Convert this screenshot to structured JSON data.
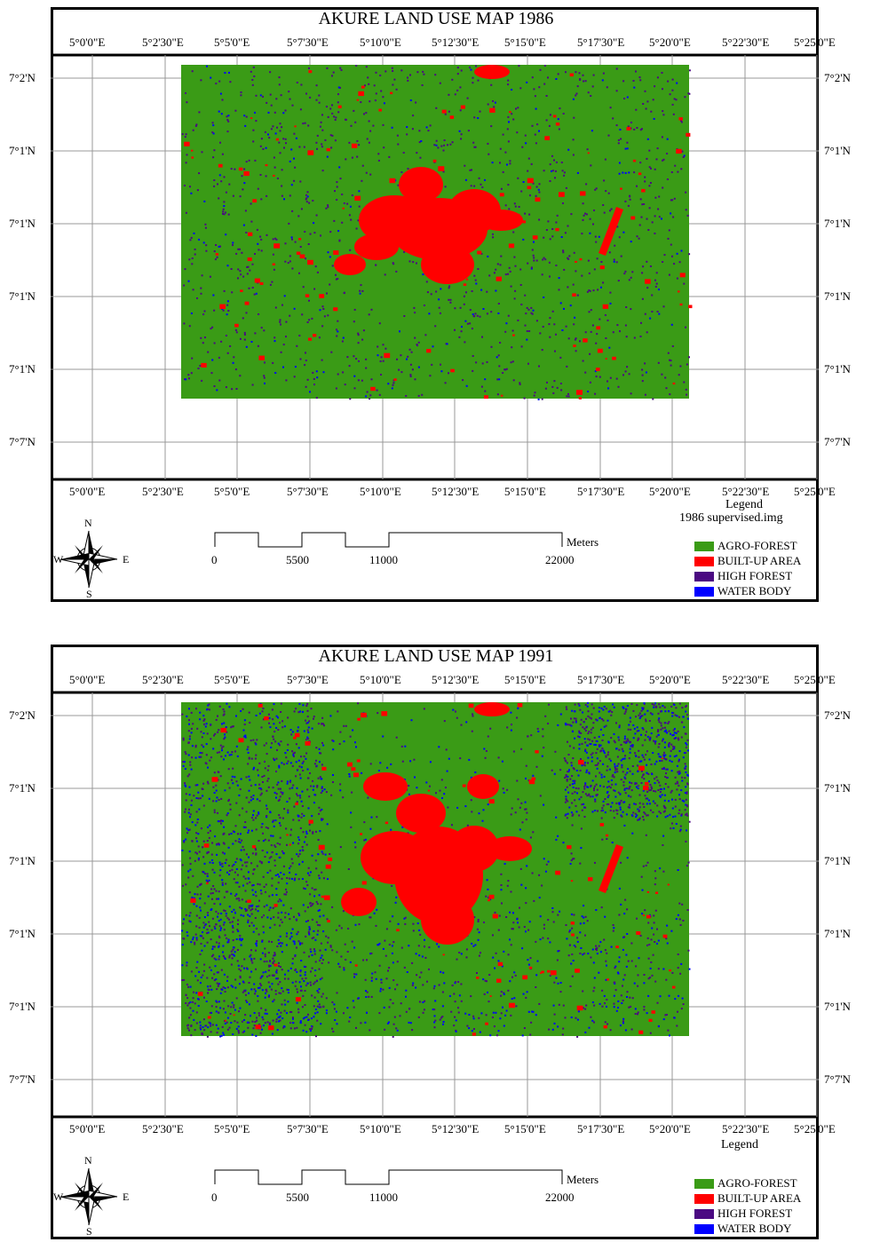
{
  "maps": [
    {
      "title": "AKURE LAND USE MAP 1986",
      "top_lon_labels": [
        "5°0'0\"E",
        "5°2'30\"E",
        "5°5'0\"E",
        "5°7'30\"E",
        "5°10'0\"E",
        "5°12'30\"E",
        "5°15'0\"E",
        "5°17'30\"E",
        "5°20'0\"E",
        "5°22'30\"E",
        "5°25'0\"E"
      ],
      "bottom_lon_labels": [
        "5°0'0\"E",
        "5°2'30\"E",
        "5°5'0\"E",
        "5°7'30\"E",
        "5°10'0\"E",
        "5°12'30\"E",
        "5°15'0\"E",
        "5°17'30\"E",
        "5°20'0\"E",
        "5°22'30\"E",
        "5°25'0\"E"
      ],
      "left_lat_labels": [
        "7°2'N",
        "7°1'N",
        "7°1'N",
        "7°1'N",
        "7°1'N",
        "7°7'N"
      ],
      "right_lat_labels": [
        "7°2'N",
        "7°1'N",
        "7°1'N",
        "7°1'N",
        "7°1'N",
        "7°7'N"
      ],
      "legend_title": "Legend",
      "legend_subtitle": "1986 supervised.img",
      "legend_items": [
        {
          "label": "AGRO-FOREST",
          "color": "#3a9b16"
        },
        {
          "label": "BUILT-UP AREA",
          "color": "#ff0000"
        },
        {
          "label": "HIGH FOREST",
          "color": "#4b0a82"
        },
        {
          "label": "WATER BODY",
          "color": "#0000ff"
        }
      ],
      "scale_labels": [
        "0",
        "5500",
        "11000",
        "22000"
      ],
      "scale_unit": "Meters",
      "compass": {
        "n": "N",
        "s": "S",
        "e": "E",
        "w": "W"
      }
    },
    {
      "title": "AKURE LAND USE MAP 1991",
      "top_lon_labels": [
        "5°0'0\"E",
        "5°2'30\"E",
        "5°5'0\"E",
        "5°7'30\"E",
        "5°10'0\"E",
        "5°12'30\"E",
        "5°15'0\"E",
        "5°17'30\"E",
        "5°20'0\"E",
        "5°22'30\"E",
        "5°25'0\"E"
      ],
      "bottom_lon_labels": [
        "5°0'0\"E",
        "5°2'30\"E",
        "5°5'0\"E",
        "5°7'30\"E",
        "5°10'0\"E",
        "5°12'30\"E",
        "5°15'0\"E",
        "5°17'30\"E",
        "5°20'0\"E",
        "5°22'30\"E",
        "5°25'0\"E"
      ],
      "left_lat_labels": [
        "7°2'N",
        "7°1'N",
        "7°1'N",
        "7°1'N",
        "7°1'N",
        "7°7'N"
      ],
      "right_lat_labels": [
        "7°2'N",
        "7°1'N",
        "7°1'N",
        "7°1'N",
        "7°1'N",
        "7°7'N"
      ],
      "legend_title": "Legend",
      "legend_subtitle": "",
      "legend_items": [
        {
          "label": "AGRO-FOREST",
          "color": "#3a9b16"
        },
        {
          "label": "BUILT-UP AREA",
          "color": "#ff0000"
        },
        {
          "label": "HIGH FOREST",
          "color": "#4b0a82"
        },
        {
          "label": "WATER BODY",
          "color": "#0000ff"
        }
      ],
      "scale_labels": [
        "0",
        "5500",
        "11000",
        "22000"
      ],
      "scale_unit": "Meters",
      "compass": {
        "n": "N",
        "s": "S",
        "e": "E",
        "w": "W"
      }
    }
  ]
}
